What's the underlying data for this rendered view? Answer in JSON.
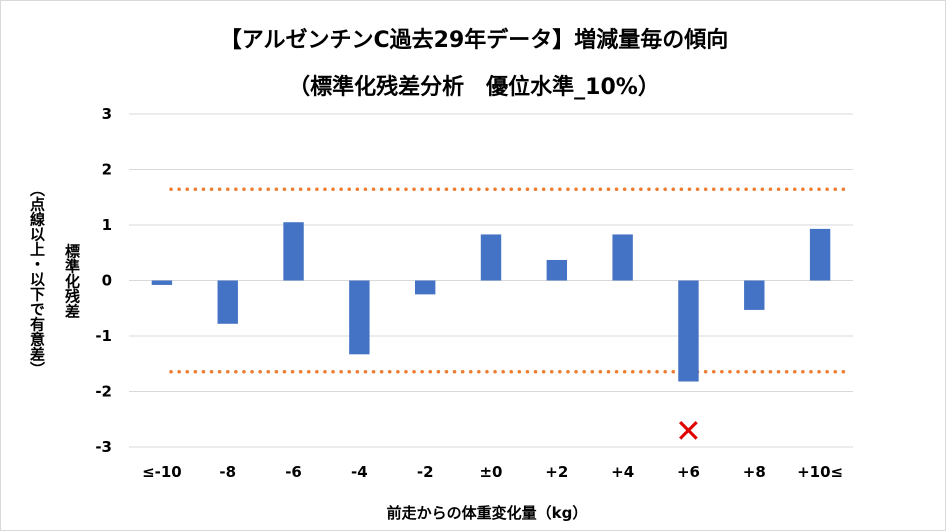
{
  "chart_data": {
    "type": "bar",
    "title_line1": "【アルゼンチンC過去29年データ】増減量毎の傾向",
    "title_line2": "（標準化残差分析　優位水準_10%）",
    "xlabel": "前走からの体重変化量（kg）",
    "ylabel": "標準化残差",
    "ylabel_note": "（点線以上・以下で有意差）",
    "categories": [
      "≤-10",
      "-8",
      "-6",
      "-4",
      "-2",
      "±0",
      "+2",
      "+4",
      "+6",
      "+8",
      "+10≤"
    ],
    "values": [
      -0.08,
      -0.78,
      1.05,
      -1.33,
      -0.25,
      0.83,
      0.37,
      0.83,
      -1.82,
      -0.53,
      0.93
    ],
    "ylim": [
      -3,
      3
    ],
    "yticks": [
      "3",
      "2",
      "1",
      "0",
      "-1",
      "-2",
      "-3"
    ],
    "threshold_upper": 1.645,
    "threshold_lower": -1.645,
    "marker_category": "+6",
    "marker_glyph": "✕",
    "bar_color": "#4472c4",
    "threshold_color": "#ed7d31",
    "marker_color": "#e00000",
    "grid": true
  }
}
